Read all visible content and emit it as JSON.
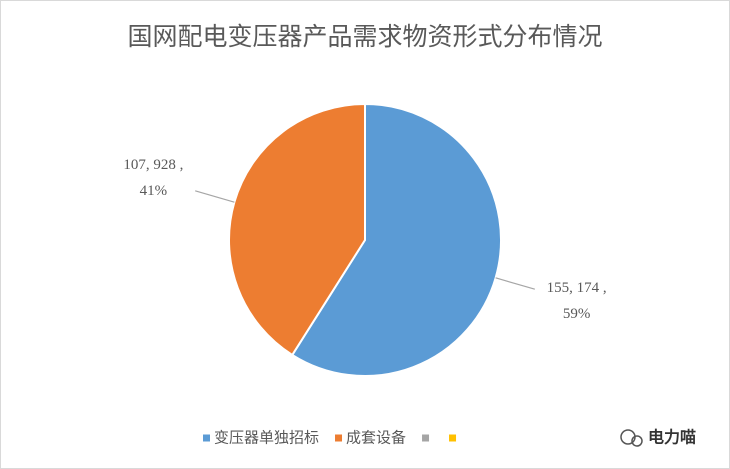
{
  "chart_data": {
    "type": "pie",
    "title": "国网配电变压器产品需求物资形式分布情况",
    "categories": [
      "变压器单独招标",
      "成套设备",
      null,
      null
    ],
    "values": [
      155174,
      107928,
      null,
      null
    ],
    "value_labels": [
      "155, 174 ,",
      "107, 928 ,",
      null,
      null
    ],
    "percent_labels": [
      "59%",
      "41%",
      null,
      null
    ],
    "colors": [
      "#5b9bd5",
      "#ed7d31",
      "#a5a5a5",
      "#ffc000"
    ],
    "legend": "bottom"
  },
  "watermark": "电力喵"
}
